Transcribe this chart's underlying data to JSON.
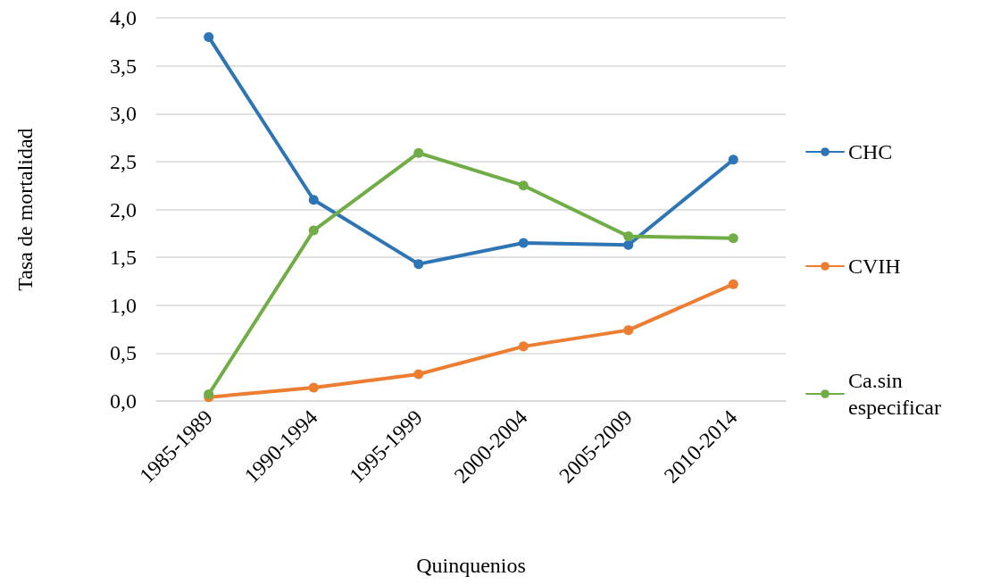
{
  "chart_data": {
    "type": "line",
    "xlabel": "Quinquenios",
    "ylabel": "Tasa de mortalidad",
    "categories": [
      "1985-1989",
      "1990-1994",
      "1995-1999",
      "2000-2004",
      "2005-2009",
      "2010-2014"
    ],
    "series": [
      {
        "name": "CHC",
        "color": "#2e75b6",
        "values": [
          3.8,
          2.1,
          1.43,
          1.65,
          1.63,
          2.52
        ]
      },
      {
        "name": "CVIH",
        "color": "#ed7d31",
        "values": [
          0.04,
          0.14,
          0.28,
          0.57,
          0.74,
          1.22
        ]
      },
      {
        "name": "Ca.sin especificar",
        "color": "#70ad47",
        "values": [
          0.07,
          1.78,
          2.59,
          2.25,
          1.72,
          1.7
        ]
      }
    ],
    "ylim": [
      0,
      4
    ],
    "yticks": [
      {
        "value": 0,
        "label": "0,0"
      },
      {
        "value": 0.5,
        "label": "0,5"
      },
      {
        "value": 1,
        "label": "1,0"
      },
      {
        "value": 1.5,
        "label": "1,5"
      },
      {
        "value": 2,
        "label": "2,0"
      },
      {
        "value": 2.5,
        "label": "2,5"
      },
      {
        "value": 3,
        "label": "3,0"
      },
      {
        "value": 3.5,
        "label": "3,5"
      },
      {
        "value": 4,
        "label": "4,0"
      }
    ],
    "grid": "y",
    "legend": "right",
    "marker": "circle",
    "line_style": "solid"
  }
}
